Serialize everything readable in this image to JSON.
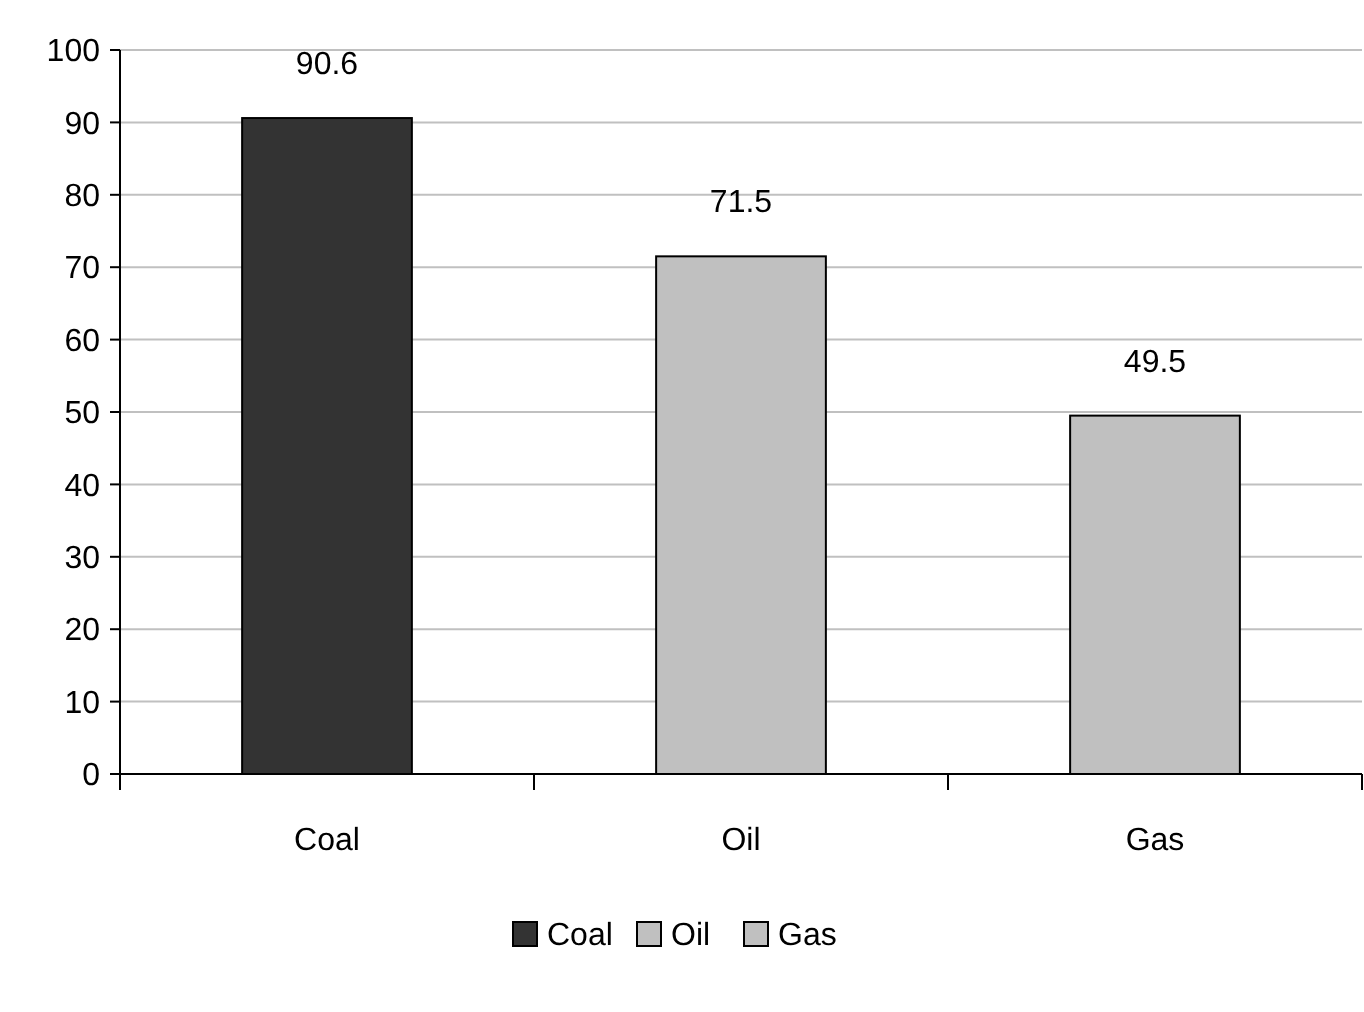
{
  "chart_data": {
    "type": "bar",
    "categories": [
      "Coal",
      "Oil",
      "Gas"
    ],
    "series": [
      {
        "name": "Coal",
        "color": "#333333",
        "values": [
          90.6,
          null,
          null
        ]
      },
      {
        "name": "Oil",
        "color": "#c0c0c0",
        "values": [
          null,
          71.5,
          null
        ]
      },
      {
        "name": "Gas",
        "color": "#c0c0c0",
        "values": [
          null,
          null,
          49.5
        ]
      }
    ],
    "stacked": true,
    "ylim": [
      0,
      100
    ],
    "yticks": [
      0,
      10,
      20,
      30,
      40,
      50,
      60,
      70,
      80,
      90,
      100
    ],
    "grid": "y",
    "data_labels": true,
    "legend": "bottom"
  }
}
